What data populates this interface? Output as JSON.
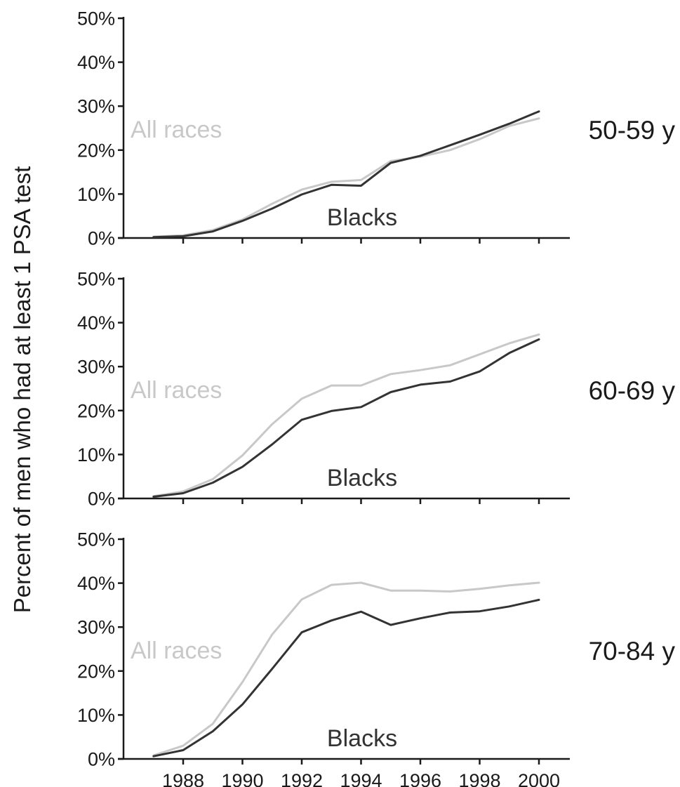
{
  "chart_data": {
    "type": "line",
    "ylabel": "Percent of men who had at least 1 PSA test",
    "xlabel": "",
    "x": [
      1987,
      1988,
      1989,
      1990,
      1991,
      1992,
      1993,
      1994,
      1995,
      1996,
      1997,
      1998,
      1999,
      2000
    ],
    "xticks": [
      "1988",
      "1990",
      "1992",
      "1994",
      "1996",
      "1998",
      "2000"
    ],
    "xlim": [
      1986,
      2001
    ],
    "ylim": [
      0,
      50
    ],
    "yticks": [
      "0%",
      "10%",
      "20%",
      "30%",
      "40%",
      "50%"
    ],
    "grid": false,
    "colors": {
      "All races": "#c8c8c8",
      "Blacks": "#333333"
    },
    "panels": [
      {
        "label": "50-59 y",
        "series_labels": {
          "All races": "All races",
          "Blacks": "Blacks"
        },
        "series": [
          {
            "name": "All races",
            "values": [
              0.3,
              0.6,
              1.8,
              4.2,
              7.8,
              11.0,
              12.8,
              13.2,
              17.5,
              18.5,
              20.0,
              22.5,
              25.5,
              27.2
            ]
          },
          {
            "name": "Blacks",
            "values": [
              0.2,
              0.4,
              1.5,
              3.9,
              6.7,
              9.9,
              12.1,
              11.9,
              17.1,
              18.7,
              21.1,
              23.5,
              26.0,
              28.8
            ]
          }
        ]
      },
      {
        "label": "60-69 y",
        "series_labels": {
          "All races": "All races",
          "Blacks": "Blacks"
        },
        "series": [
          {
            "name": "All races",
            "values": [
              0.5,
              1.6,
              4.4,
              9.8,
              16.9,
              22.7,
              25.7,
              25.7,
              28.3,
              29.2,
              30.3,
              32.8,
              35.3,
              37.3
            ]
          },
          {
            "name": "Blacks",
            "values": [
              0.4,
              1.2,
              3.6,
              7.2,
              12.3,
              17.9,
              19.9,
              20.8,
              24.2,
              25.9,
              26.6,
              28.9,
              33.1,
              36.2
            ]
          }
        ]
      },
      {
        "label": "70-84 y",
        "series_labels": {
          "All races": "All races",
          "Blacks": "Blacks"
        },
        "series": [
          {
            "name": "All races",
            "values": [
              0.8,
              3.0,
              8.0,
              17.5,
              28.3,
              36.3,
              39.6,
              40.1,
              38.3,
              38.3,
              38.1,
              38.7,
              39.5,
              40.1
            ]
          },
          {
            "name": "Blacks",
            "values": [
              0.6,
              2.0,
              6.3,
              12.4,
              20.5,
              28.8,
              31.5,
              33.5,
              30.5,
              32.0,
              33.3,
              33.6,
              34.7,
              36.2
            ]
          }
        ]
      }
    ]
  }
}
